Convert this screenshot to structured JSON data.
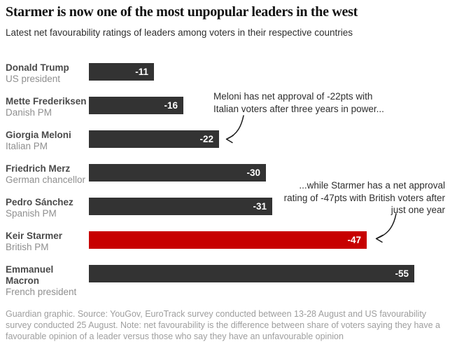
{
  "header": {
    "title": "Starmer is now one of the most unpopular leaders in the west",
    "subtitle": "Latest net favourability ratings of leaders among voters in their respective countries"
  },
  "chart_data": {
    "type": "bar",
    "orientation": "horizontal",
    "title": "Starmer is now one of the most unpopular leaders in the west",
    "subtitle": "Latest net favourability ratings of leaders among voters in their respective countries",
    "value_unit": "net favourability points",
    "value_range": [
      0,
      -55
    ],
    "grid": false,
    "legend": false,
    "categories": [
      "Donald Trump",
      "Mette Frederiksen",
      "Giorgia Meloni",
      "Friedrich Merz",
      "Pedro Sánchez",
      "Keir Starmer",
      "Emmanuel Macron"
    ],
    "values": [
      -11,
      -16,
      -22,
      -30,
      -31,
      -47,
      -55
    ],
    "leaders": [
      {
        "name": "Donald Trump",
        "role": "US president",
        "value": -11,
        "highlight": false
      },
      {
        "name": "Mette Frederiksen",
        "role": "Danish PM",
        "value": -16,
        "highlight": false
      },
      {
        "name": "Giorgia Meloni",
        "role": "Italian PM",
        "value": -22,
        "highlight": false
      },
      {
        "name": "Friedrich Merz",
        "role": "German chancellor",
        "value": -30,
        "highlight": false
      },
      {
        "name": "Pedro Sánchez",
        "role": "Spanish PM",
        "value": -31,
        "highlight": false
      },
      {
        "name": "Keir Starmer",
        "role": "British PM",
        "value": -47,
        "highlight": true
      },
      {
        "name": "Emmanuel Macron",
        "role": "French president",
        "value": -55,
        "highlight": false
      }
    ],
    "colors": {
      "bar": "#333333",
      "highlight_bar": "#c70000",
      "value_label": "#ffffff"
    }
  },
  "annotations": {
    "meloni": "Meloni has net approval of -22pts with Italian voters after three years in power...",
    "starmer": "...while Starmer has a net approval rating of -47pts with British voters after just one year"
  },
  "footer": {
    "text": "Guardian graphic. Source: YouGov, EuroTrack survey conducted between 13-28 August and US favourability survey conducted 25 August. Note: net favourability is the difference between share of voters saying they have a favourable opinion of a leader versus those who say they have an unfavourable opinion"
  }
}
